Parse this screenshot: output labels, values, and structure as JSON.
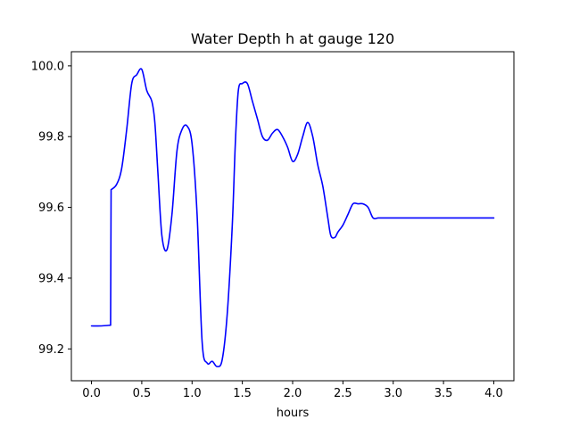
{
  "chart_data": {
    "type": "line",
    "title": "Water Depth h at gauge 120",
    "xlabel": "hours",
    "ylabel": "",
    "xlim": [
      -0.2,
      4.2
    ],
    "ylim": [
      99.11,
      100.04
    ],
    "grid": false,
    "x_ticks": [
      0.0,
      0.5,
      1.0,
      1.5,
      2.0,
      2.5,
      3.0,
      3.5,
      4.0
    ],
    "x_tick_labels": [
      "0.0",
      "0.5",
      "1.0",
      "1.5",
      "2.0",
      "2.5",
      "3.0",
      "3.5",
      "4.0"
    ],
    "y_ticks": [
      99.2,
      99.4,
      99.6,
      99.8,
      100.0
    ],
    "y_tick_labels": [
      "99.2",
      "99.4",
      "99.6",
      "99.8",
      "100.0"
    ],
    "series": [
      {
        "color": "#0000ff",
        "x": [
          0.0,
          0.1,
          0.19,
          0.195,
          0.25,
          0.3,
          0.35,
          0.4,
          0.45,
          0.5,
          0.55,
          0.6,
          0.63,
          0.66,
          0.7,
          0.75,
          0.8,
          0.85,
          0.9,
          0.95,
          1.0,
          1.05,
          1.1,
          1.15,
          1.2,
          1.25,
          1.3,
          1.35,
          1.4,
          1.43,
          1.46,
          1.5,
          1.55,
          1.6,
          1.65,
          1.7,
          1.75,
          1.8,
          1.85,
          1.9,
          1.95,
          2.0,
          2.05,
          2.1,
          2.15,
          2.2,
          2.25,
          2.3,
          2.35,
          2.38,
          2.42,
          2.45,
          2.5,
          2.55,
          2.6,
          2.65,
          2.7,
          2.75,
          2.8,
          2.85,
          2.9,
          2.95,
          3.0,
          3.05,
          3.1,
          3.15,
          3.2,
          3.25,
          3.3,
          3.35,
          3.4,
          3.45,
          3.5,
          3.55,
          3.6,
          3.65,
          3.7,
          3.75,
          3.8,
          3.85,
          3.9,
          3.95,
          4.0
        ],
        "y": [
          99.265,
          99.265,
          99.267,
          99.65,
          99.665,
          99.71,
          99.82,
          99.95,
          99.975,
          99.99,
          99.93,
          99.9,
          99.84,
          99.7,
          99.52,
          99.48,
          99.58,
          99.76,
          99.82,
          99.83,
          99.78,
          99.58,
          99.22,
          99.16,
          99.165,
          99.15,
          99.17,
          99.3,
          99.55,
          99.78,
          99.93,
          99.95,
          99.95,
          99.9,
          99.85,
          99.8,
          99.79,
          99.81,
          99.82,
          99.8,
          99.77,
          99.73,
          99.75,
          99.8,
          99.84,
          99.8,
          99.72,
          99.66,
          99.57,
          99.52,
          99.515,
          99.53,
          99.55,
          99.58,
          99.61,
          99.61,
          99.61,
          99.6,
          99.57,
          99.57,
          99.57,
          99.57,
          99.57,
          99.57,
          99.57,
          99.57,
          99.57,
          99.57,
          99.57,
          99.57,
          99.57,
          99.57,
          99.57,
          99.57,
          99.57,
          99.57,
          99.57,
          99.57,
          99.57,
          99.57,
          99.57,
          99.57,
          99.57
        ]
      }
    ]
  }
}
